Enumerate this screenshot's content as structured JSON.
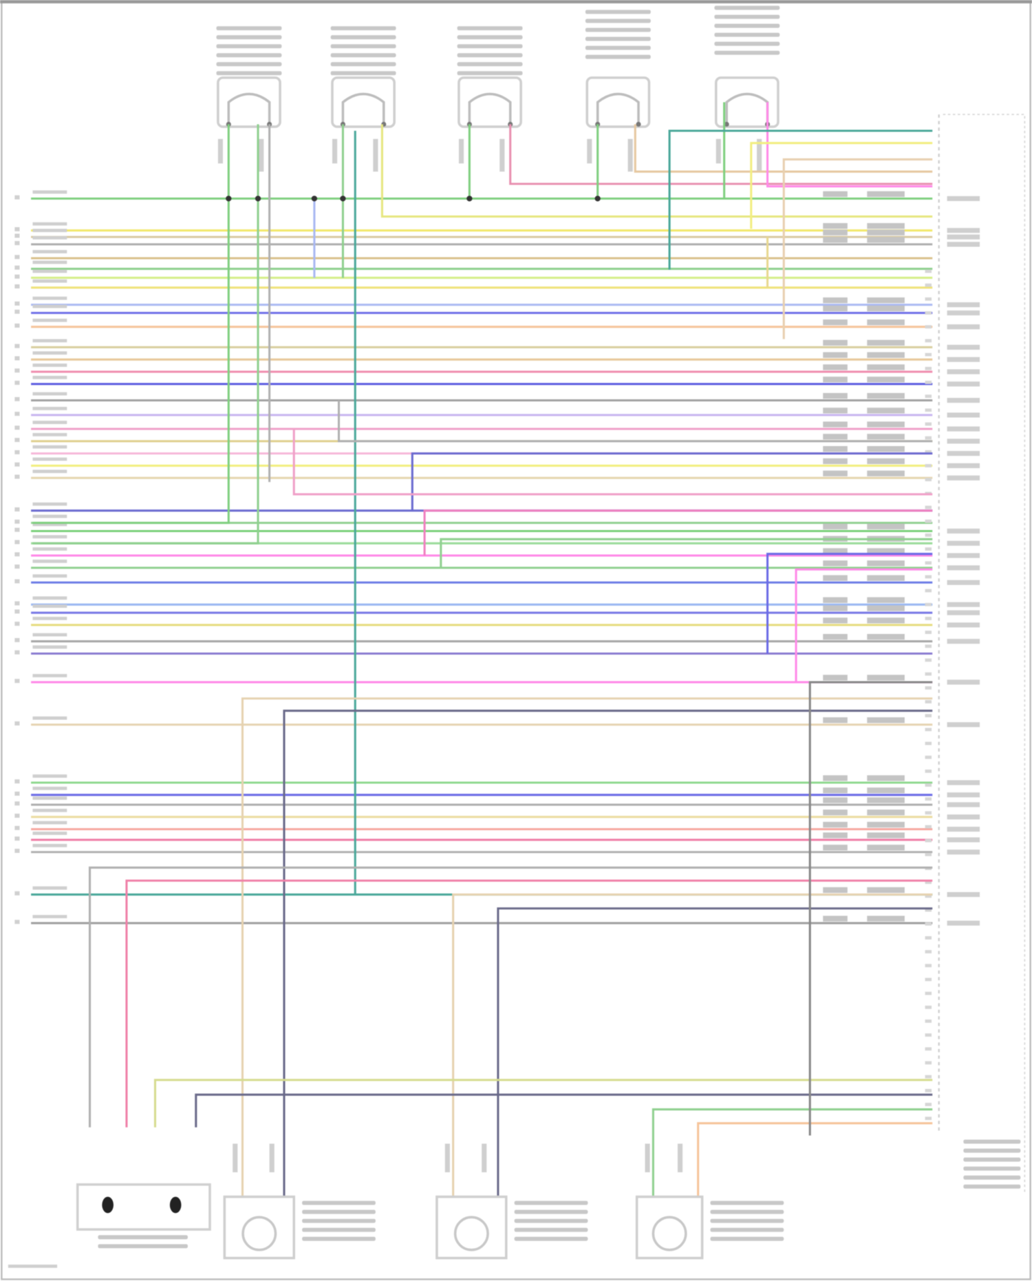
{
  "diagram": {
    "wire_colors": [
      "#7fcf7f",
      "#f2e86a",
      "#d8c9a0",
      "#b0b0b0",
      "#d9c08a",
      "#8fd08f",
      "#d6ee8a",
      "#efe27a",
      "#a9b8f2",
      "#6f6fe8",
      "#f6c49a",
      "#d9cfa0",
      "#e8c89a",
      "#f08fb0",
      "#5a5ae0",
      "#a0a0a0",
      "#c9b6f0",
      "#f0a0c8",
      "#e0d090",
      "#f6b6d8",
      "#f2ee80",
      "#e6d6b0",
      "#6a6ad0",
      "#8fd08f",
      "#7ad07a",
      "#9adb9a",
      "#ff8ae8",
      "#8fd08f",
      "#6a7ae6",
      "#9ab8f2",
      "#7a7ae6",
      "#e6dc80",
      "#a8a8a8",
      "#8a7ad0",
      "#ff8ae8",
      "#e6d2b0",
      "#8fd88f",
      "#6a6ae6",
      "#b0b0b0",
      "#ecdca0",
      "#f6a8a0",
      "#f080a8",
      "#b0b0b0",
      "#4aa89a",
      "#a0a0a0"
    ],
    "components": [
      "sensor-top",
      "sensor-top",
      "sensor-top",
      "sensor-top",
      "sensor-top",
      "knock-sensors",
      "position-sensor",
      "position-sensor",
      "position-sensor",
      "control-module-connector"
    ]
  }
}
